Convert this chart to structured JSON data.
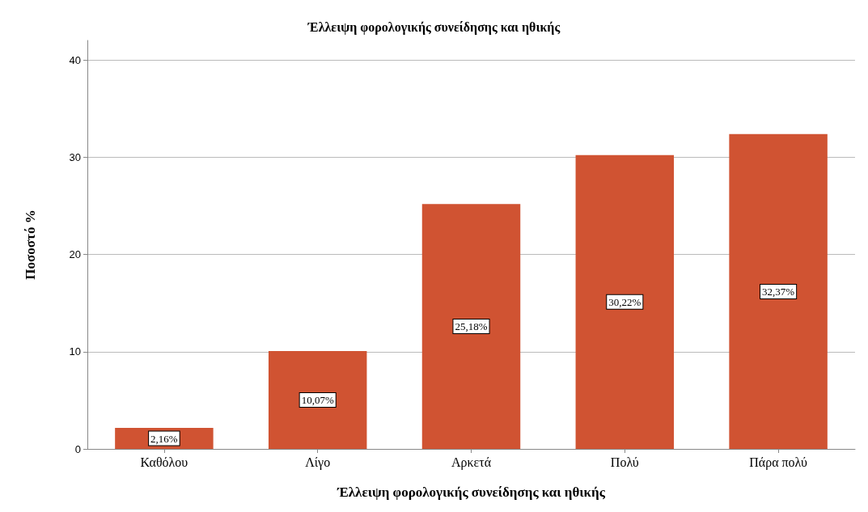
{
  "chart_data": {
    "type": "bar",
    "title": "Έλλειψη φορολογικής συνείδησης και ηθικής",
    "xlabel": "Έλλειψη φορολογικής συνείδησης και ηθικής",
    "ylabel": "Ποσοστό %",
    "categories": [
      "Καθόλου",
      "Λίγο",
      "Αρκετά",
      "Πολύ",
      "Πάρα πολύ"
    ],
    "values": [
      2.16,
      10.07,
      25.18,
      30.22,
      32.37
    ],
    "value_labels": [
      "2,16%",
      "10,07%",
      "25,18%",
      "30,22%",
      "32,37%"
    ],
    "color": "#d05332",
    "ylim": [
      0,
      42
    ],
    "yticks": [
      0,
      10,
      20,
      30,
      40
    ],
    "grid": "y"
  }
}
